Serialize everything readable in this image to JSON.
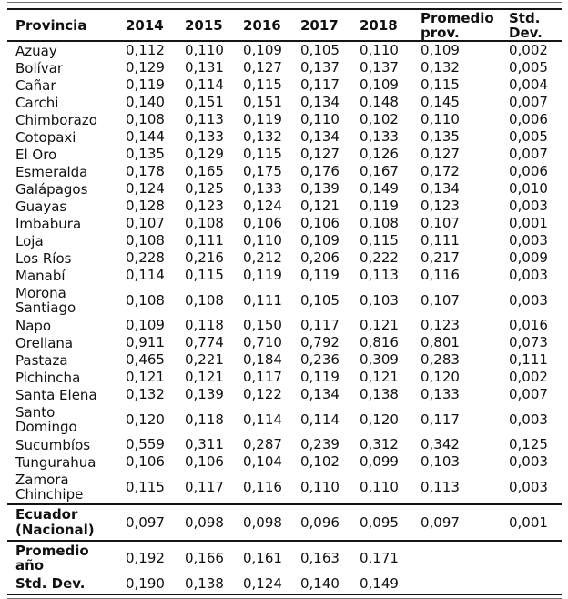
{
  "table": {
    "header": {
      "provincia": "Provincia",
      "years": [
        "2014",
        "2015",
        "2016",
        "2017",
        "2018"
      ],
      "promedio": {
        "line1": "Promedio",
        "line2": "prov."
      },
      "std": {
        "line1": "Std.",
        "line2": "Dev."
      }
    },
    "provinces": [
      {
        "name": "Azuay",
        "values": [
          "0,112",
          "0,110",
          "0,109",
          "0,105",
          "0,110"
        ],
        "promedio": "0,109",
        "std": "0,002"
      },
      {
        "name": "Bolívar",
        "values": [
          "0,129",
          "0,131",
          "0,127",
          "0,137",
          "0,137"
        ],
        "promedio": "0,132",
        "std": "0,005"
      },
      {
        "name": "Cañar",
        "values": [
          "0,119",
          "0,114",
          "0,115",
          "0,117",
          "0,109"
        ],
        "promedio": "0,115",
        "std": "0,004"
      },
      {
        "name": "Carchi",
        "values": [
          "0,140",
          "0,151",
          "0,151",
          "0,134",
          "0,148"
        ],
        "promedio": "0,145",
        "std": "0,007"
      },
      {
        "name": "Chimborazo",
        "values": [
          "0,108",
          "0,113",
          "0,119",
          "0,110",
          "0,102"
        ],
        "promedio": "0,110",
        "std": "0,006"
      },
      {
        "name": "Cotopaxi",
        "values": [
          "0,144",
          "0,133",
          "0,132",
          "0,134",
          "0,133"
        ],
        "promedio": "0,135",
        "std": "0,005"
      },
      {
        "name": "El Oro",
        "values": [
          "0,135",
          "0,129",
          "0,115",
          "0,127",
          "0,126"
        ],
        "promedio": "0,127",
        "std": "0,007"
      },
      {
        "name": "Esmeralda",
        "values": [
          "0,178",
          "0,165",
          "0,175",
          "0,176",
          "0,167"
        ],
        "promedio": "0,172",
        "std": "0,006"
      },
      {
        "name": "Galápagos",
        "values": [
          "0,124",
          "0,125",
          "0,133",
          "0,139",
          "0,149"
        ],
        "promedio": "0,134",
        "std": "0,010"
      },
      {
        "name": "Guayas",
        "values": [
          "0,128",
          "0,123",
          "0,124",
          "0,121",
          "0,119"
        ],
        "promedio": "0,123",
        "std": "0,003"
      },
      {
        "name": "Imbabura",
        "values": [
          "0,107",
          "0,108",
          "0,106",
          "0,106",
          "0,108"
        ],
        "promedio": "0,107",
        "std": "0,001"
      },
      {
        "name": "Loja",
        "values": [
          "0,108",
          "0,111",
          "0,110",
          "0,109",
          "0,115"
        ],
        "promedio": "0,111",
        "std": "0,003"
      },
      {
        "name": "Los Ríos",
        "values": [
          "0,228",
          "0,216",
          "0,212",
          "0,206",
          "0,222"
        ],
        "promedio": "0,217",
        "std": "0,009"
      },
      {
        "name": "Manabí",
        "values": [
          "0,114",
          "0,115",
          "0,119",
          "0,119",
          "0,113"
        ],
        "promedio": "0,116",
        "std": "0,003"
      },
      {
        "name": "Morona",
        "name2": "Santiago",
        "values": [
          "0,108",
          "0,108",
          "0,111",
          "0,105",
          "0,103"
        ],
        "promedio": "0,107",
        "std": "0,003"
      },
      {
        "name": "Napo",
        "values": [
          "0,109",
          "0,118",
          "0,150",
          "0,117",
          "0,121"
        ],
        "promedio": "0,123",
        "std": "0,016"
      },
      {
        "name": "Orellana",
        "values": [
          "0,911",
          "0,774",
          "0,710",
          "0,792",
          "0,816"
        ],
        "promedio": "0,801",
        "std": "0,073"
      },
      {
        "name": "Pastaza",
        "values": [
          "0,465",
          "0,221",
          "0,184",
          "0,236",
          "0,309"
        ],
        "promedio": "0,283",
        "std": "0,111"
      },
      {
        "name": "Pichincha",
        "values": [
          "0,121",
          "0,121",
          "0,117",
          "0,119",
          "0,121"
        ],
        "promedio": "0,120",
        "std": "0,002"
      },
      {
        "name": "Santa Elena",
        "values": [
          "0,132",
          "0,139",
          "0,122",
          "0,134",
          "0,138"
        ],
        "promedio": "0,133",
        "std": "0,007"
      },
      {
        "name": "Santo",
        "name2": "Domingo",
        "values": [
          "0,120",
          "0,118",
          "0,114",
          "0,114",
          "0,120"
        ],
        "promedio": "0,117",
        "std": "0,003"
      },
      {
        "name": "Sucumbíos",
        "values": [
          "0,559",
          "0,311",
          "0,287",
          "0,239",
          "0,312"
        ],
        "promedio": "0,342",
        "std": "0,125"
      },
      {
        "name": "Tungurahua",
        "values": [
          "0,106",
          "0,106",
          "0,104",
          "0,102",
          "0,099"
        ],
        "promedio": "0,103",
        "std": "0,003"
      },
      {
        "name": "Zamora",
        "name2": "Chinchipe",
        "values": [
          "0,115",
          "0,117",
          "0,116",
          "0,110",
          "0,110"
        ],
        "promedio": "0,113",
        "std": "0,003"
      }
    ],
    "national": {
      "name": "Ecuador",
      "name2": "(Nacional)",
      "values": [
        "0,097",
        "0,098",
        "0,098",
        "0,096",
        "0,095"
      ],
      "promedio": "0,097",
      "std": "0,001"
    },
    "promedio_ano": {
      "name": "Promedio",
      "name2": "año",
      "values": [
        "0,192",
        "0,166",
        "0,161",
        "0,163",
        "0,171"
      ],
      "promedio": "",
      "std": ""
    },
    "std_dev": {
      "name": "Std. Dev.",
      "values": [
        "0,190",
        "0,138",
        "0,124",
        "0,140",
        "0,149"
      ],
      "promedio": "",
      "std": ""
    }
  },
  "colors": {
    "background": "#ffffff",
    "text": "#111111",
    "rule": "#151515",
    "thin_rule": "#6e6e6e"
  }
}
